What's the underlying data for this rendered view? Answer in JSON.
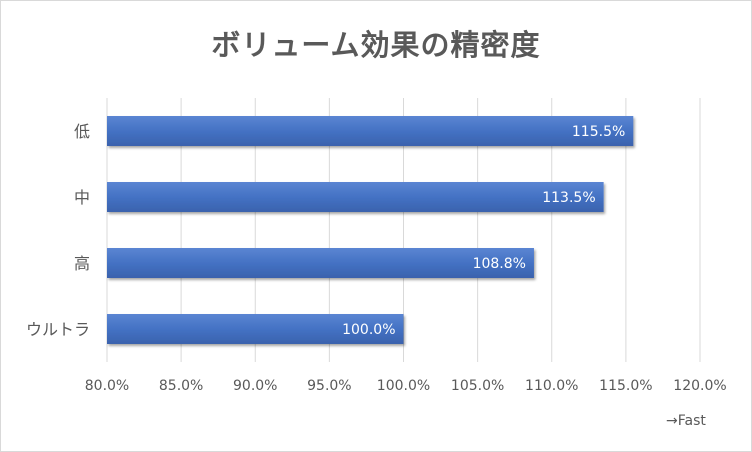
{
  "chart_data": {
    "type": "bar",
    "orientation": "horizontal",
    "title": "ボリューム効果の精密度",
    "categories": [
      "低",
      "中",
      "高",
      "ウルトラ"
    ],
    "values": [
      115.5,
      113.5,
      108.8,
      100.0
    ],
    "data_labels": [
      "115.5%",
      "113.5%",
      "108.8%",
      "100.0%"
    ],
    "xlim": [
      80,
      120
    ],
    "xticks": [
      80,
      85,
      90,
      95,
      100,
      105,
      110,
      115,
      120
    ],
    "xtick_labels": [
      "80.0%",
      "85.0%",
      "90.0%",
      "95.0%",
      "100.0%",
      "105.0%",
      "110.0%",
      "115.0%",
      "120.0%"
    ],
    "xlabel": "→Fast",
    "ylabel": "",
    "grid": "vertical",
    "bar_color": "#4472c4",
    "legend": "none"
  }
}
